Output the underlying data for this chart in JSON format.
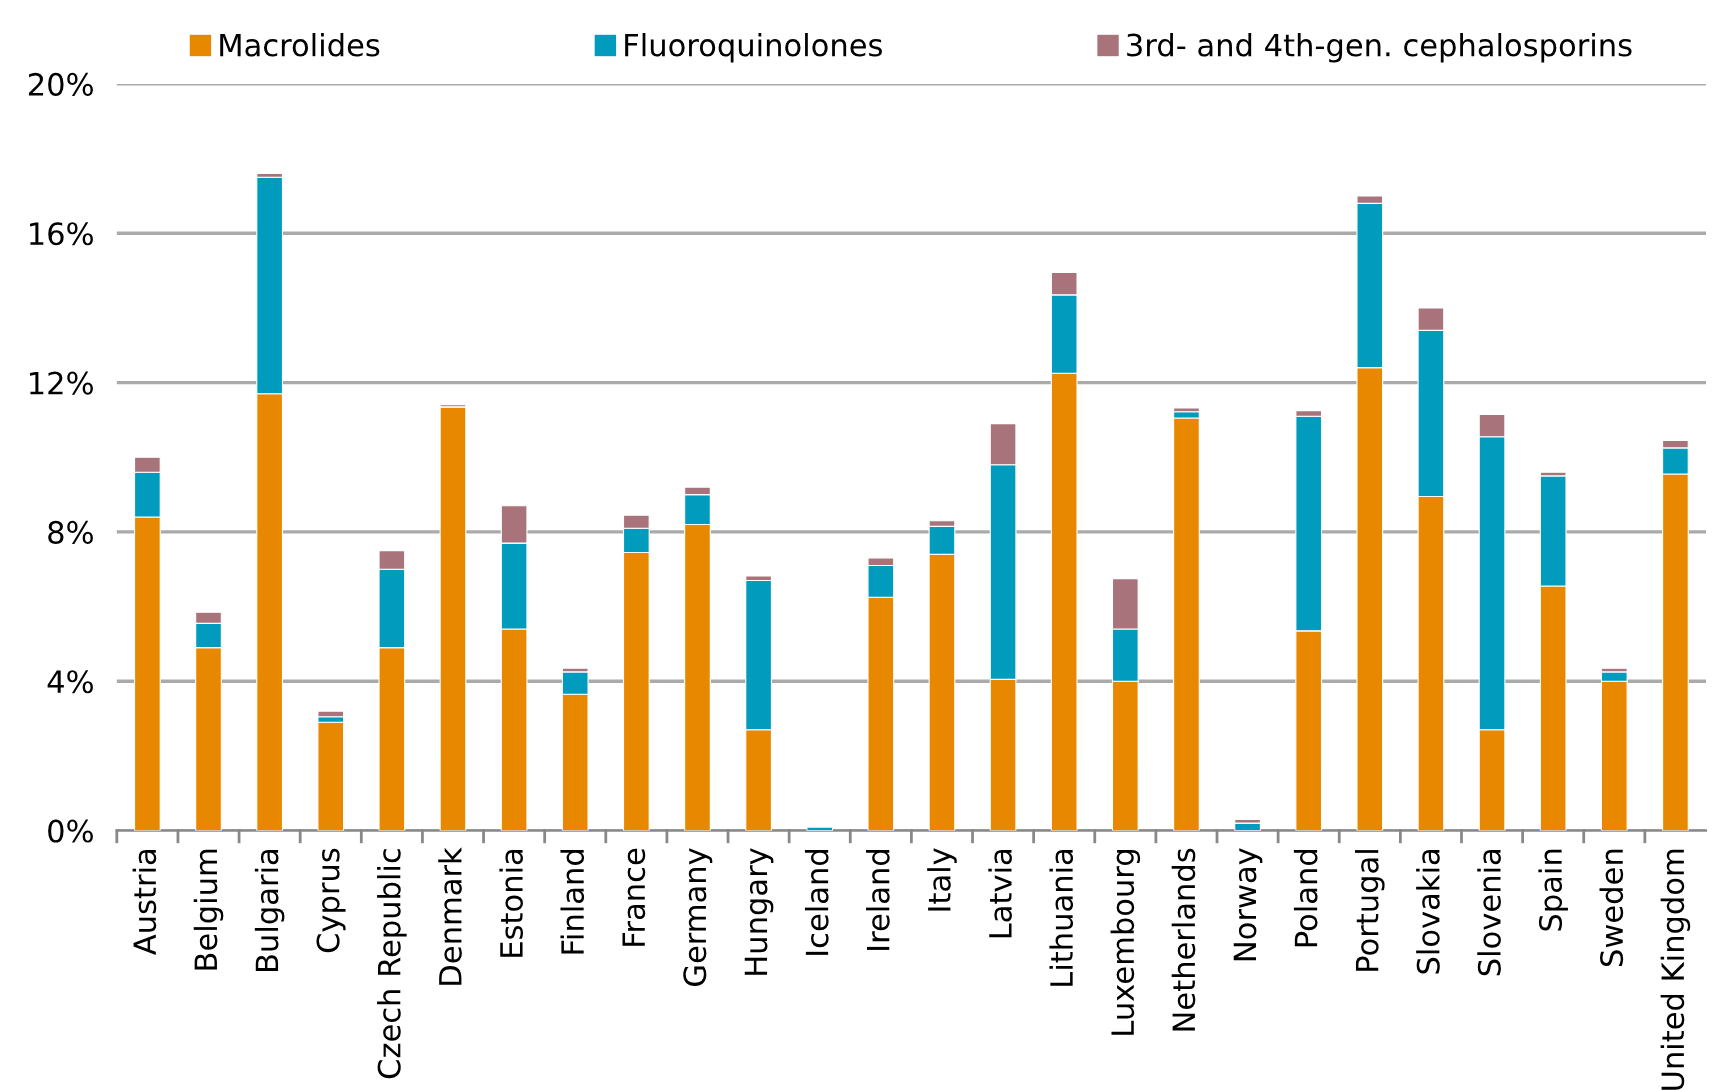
{
  "chart_data": {
    "type": "bar",
    "stacked": true,
    "categories": [
      "Austria",
      "Belgium",
      "Bulgaria",
      "Cyprus",
      "Czech Republic",
      "Denmark",
      "Estonia",
      "Finland",
      "France",
      "Germany",
      "Hungary",
      "Iceland",
      "Ireland",
      "Italy",
      "Latvia",
      "Lithuania",
      "Luxembourg",
      "Netherlands",
      "Norway",
      "Poland",
      "Portugal",
      "Slovakia",
      "Slovenia",
      "Spain",
      "Sweden",
      "United Kingdom"
    ],
    "series": [
      {
        "name": "Macrolides",
        "color": "#e88800",
        "values": [
          8.4,
          4.9,
          11.7,
          2.9,
          4.9,
          11.35,
          5.4,
          3.65,
          7.45,
          8.2,
          2.7,
          null,
          6.25,
          7.4,
          4.05,
          12.25,
          4.0,
          11.05,
          null,
          5.35,
          12.4,
          8.95,
          2.7,
          6.55,
          4.0,
          9.55
        ]
      },
      {
        "name": "Fluoroquinolones",
        "color": "#009bbd",
        "values": [
          1.2,
          0.65,
          5.8,
          0.15,
          2.1,
          null,
          2.3,
          0.6,
          0.65,
          0.8,
          4.0,
          0.1,
          0.85,
          0.75,
          5.75,
          2.1,
          1.4,
          0.17,
          0.2,
          5.75,
          4.4,
          4.45,
          7.85,
          2.95,
          0.25,
          0.7
        ]
      },
      {
        "name": "3rd- and 4th-gen. cephalosporins",
        "color": "#a8737a",
        "values": [
          0.4,
          0.3,
          0.1,
          0.15,
          0.5,
          0.06,
          1.0,
          0.1,
          0.35,
          0.2,
          0.12,
          null,
          0.2,
          0.15,
          1.1,
          0.6,
          1.35,
          0.1,
          0.1,
          0.15,
          0.2,
          0.6,
          0.6,
          0.1,
          0.1,
          0.2
        ]
      }
    ],
    "ylim": [
      0,
      20
    ],
    "yticks": [
      {
        "value": 0,
        "label": "0%"
      },
      {
        "value": 4,
        "label": "4%"
      },
      {
        "value": 8,
        "label": "8%"
      },
      {
        "value": 12,
        "label": "12%"
      },
      {
        "value": 16,
        "label": "16%"
      },
      {
        "value": 20,
        "label": "20%"
      }
    ],
    "grid": "y",
    "legend": "top"
  }
}
